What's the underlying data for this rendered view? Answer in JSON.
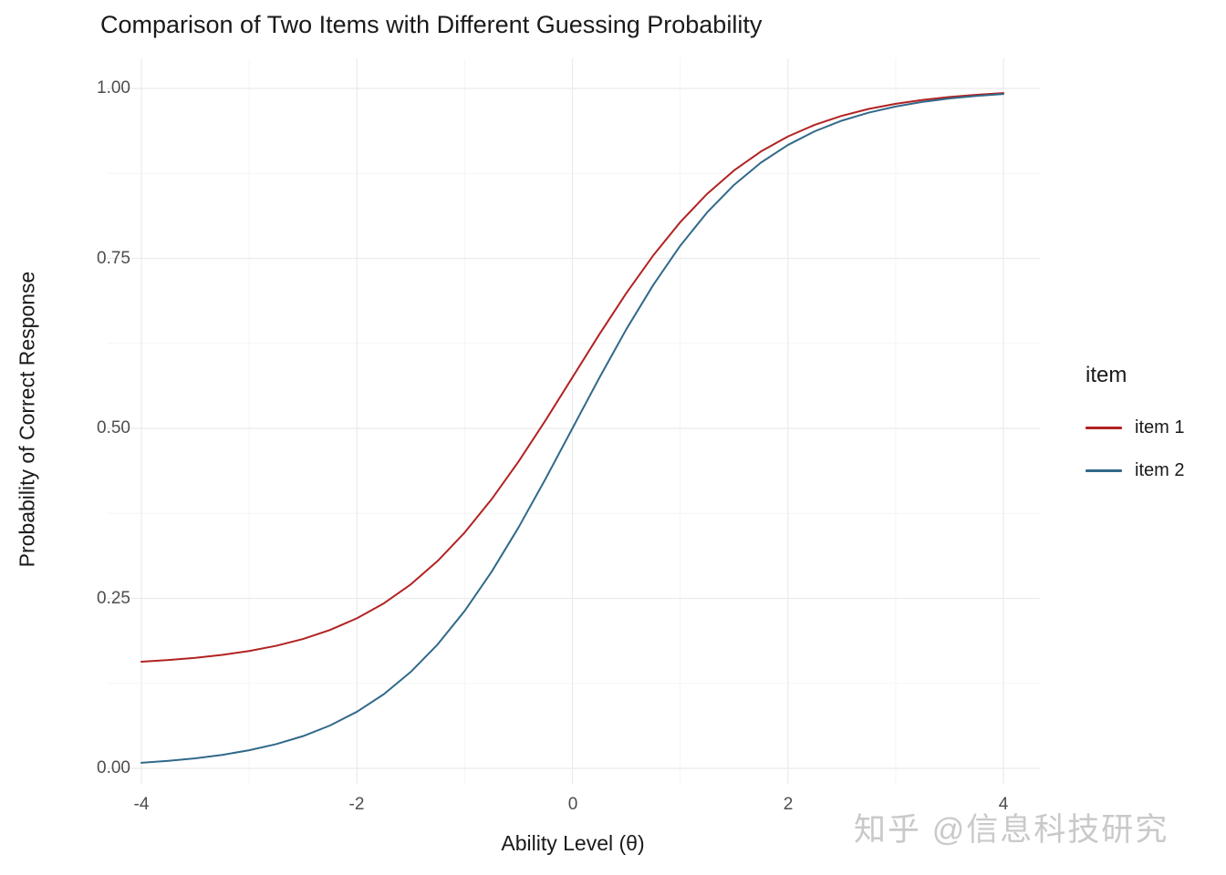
{
  "page": {
    "background": "#FFFFFF"
  },
  "chart_data": {
    "type": "line",
    "title": "Comparison of Two Items with Different Guessing Probability",
    "xlabel": "Ability Level (θ)",
    "ylabel": "Probability of Correct Response",
    "xlim": [
      -4,
      4
    ],
    "ylim": [
      0,
      1
    ],
    "xlim_expanded": [
      -4.32,
      4.32
    ],
    "grid": {
      "visible": true,
      "major": "#EBEBEB",
      "minor": "#F5F5F5"
    },
    "x_ticks": [
      -4,
      -2,
      0,
      2,
      4
    ],
    "x_tick_labels": [
      "-4",
      "-2",
      "0",
      "2",
      "4"
    ],
    "y_ticks": [
      0,
      0.25,
      0.5,
      0.75,
      1
    ],
    "y_tick_labels": [
      "0.00",
      "0.25",
      "0.50",
      "0.75",
      "1.00"
    ],
    "legend": {
      "title": "item",
      "position": "right",
      "entries": [
        {
          "label": "item 1",
          "color": "#B22222"
        },
        {
          "label": "item 2",
          "color": "#31698A"
        }
      ]
    },
    "x": [
      -4,
      -3.75,
      -3.5,
      -3.25,
      -3,
      -2.75,
      -2.5,
      -2.25,
      -2,
      -1.75,
      -1.5,
      -1.25,
      -1,
      -0.75,
      -0.5,
      -0.25,
      0,
      0.25,
      0.5,
      0.75,
      1,
      1.25,
      1.5,
      1.75,
      2,
      2.25,
      2.5,
      2.75,
      3,
      3.25,
      3.5,
      3.75,
      4
    ],
    "series": [
      {
        "name": "item 1",
        "color": "#B22222",
        "guessing": 0.15,
        "values": [
          0.1569,
          0.1593,
          0.1626,
          0.1669,
          0.1726,
          0.1802,
          0.1903,
          0.2035,
          0.2207,
          0.2427,
          0.2706,
          0.3051,
          0.3468,
          0.3957,
          0.4512,
          0.5117,
          0.575,
          0.6383,
          0.6988,
          0.7543,
          0.8032,
          0.8449,
          0.8794,
          0.9073,
          0.9293,
          0.9465,
          0.9597,
          0.9698,
          0.9774,
          0.9831,
          0.9874,
          0.9907,
          0.9931
        ]
      },
      {
        "name": "item 2",
        "color": "#31698A",
        "guessing": 0.0,
        "values": [
          0.0082,
          0.011,
          0.0148,
          0.0198,
          0.0266,
          0.0356,
          0.0474,
          0.063,
          0.0832,
          0.1091,
          0.1419,
          0.1824,
          0.2315,
          0.2891,
          0.3543,
          0.4256,
          0.5,
          0.5744,
          0.6457,
          0.7109,
          0.7685,
          0.8176,
          0.8581,
          0.8909,
          0.9168,
          0.937,
          0.9526,
          0.9644,
          0.9734,
          0.9802,
          0.9852,
          0.989,
          0.9918
        ]
      }
    ]
  },
  "watermark": {
    "text": "知乎 @信息科技研究",
    "color": "#C9C9C9"
  }
}
